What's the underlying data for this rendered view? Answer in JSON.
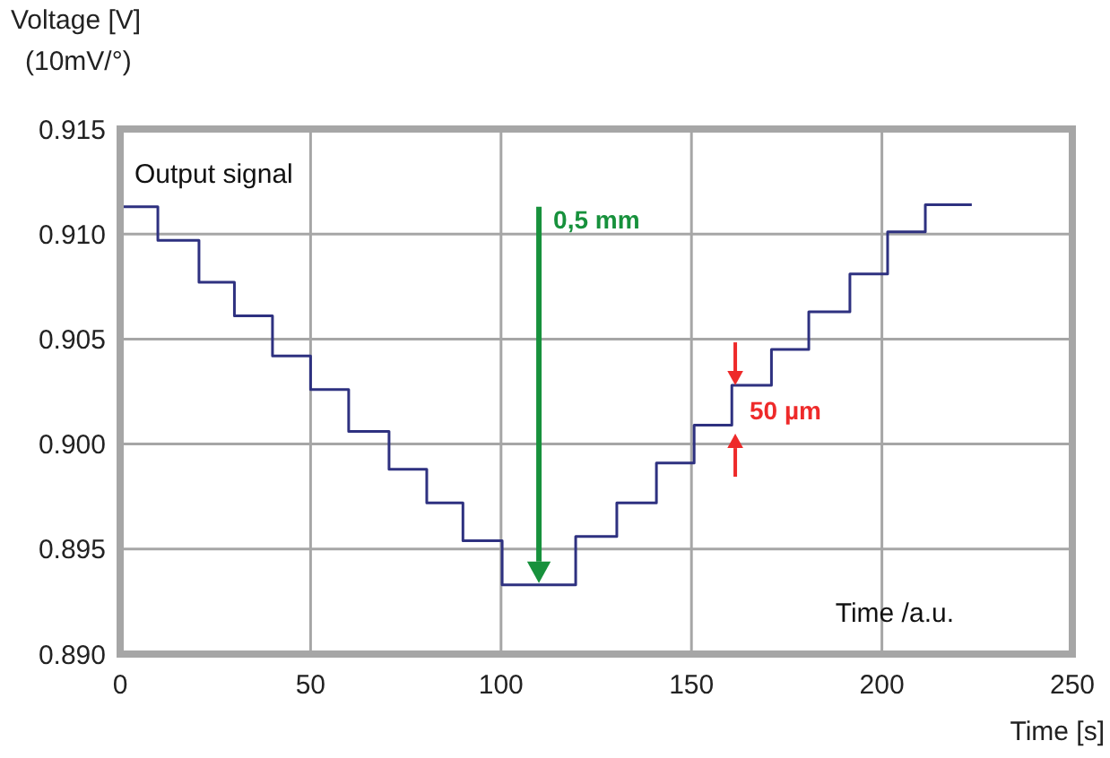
{
  "chart_data": {
    "type": "step",
    "ylabel": "Voltage [V]\n(10mV/°)",
    "xlabel": "Time [s]",
    "x": [
      0,
      9.9,
      20.7,
      30,
      40,
      50,
      60,
      70.6,
      80.5,
      90,
      100.3,
      119.6,
      130.4,
      140.8,
      150.7,
      160.6,
      171,
      180.8,
      191.6,
      201.5,
      211.4,
      223.6
    ],
    "series": [
      {
        "color": "#2e3180",
        "values": [
          0.9113,
          0.9097,
          0.9077,
          0.9061,
          0.9042,
          0.9026,
          0.9006,
          0.8988,
          0.8972,
          0.8954,
          0.8933,
          0.8956,
          0.8972,
          0.8991,
          0.9009,
          0.9028,
          0.9045,
          0.9063,
          0.9081,
          0.9101,
          0.9114,
          0.9114
        ]
      }
    ],
    "xlim": [
      0,
      250
    ],
    "xticks": [
      0,
      50,
      100,
      150,
      200,
      250
    ],
    "ylim": [
      0.89,
      0.915
    ],
    "yticks": [
      {
        "value": 0.89,
        "label": "0.890"
      },
      {
        "value": 0.895,
        "label": "0.895"
      },
      {
        "value": 0.9,
        "label": "0.900"
      },
      {
        "value": 0.905,
        "label": "0.905"
      },
      {
        "value": 0.91,
        "label": "0.910"
      },
      {
        "value": 0.915,
        "label": "0.915"
      }
    ],
    "grid": true,
    "annotations": [
      "Output signal",
      "Time /a.u.",
      "0,5 mm",
      {
        "text": "50 µm",
        "x": 161.5,
        "y": 0.9016
      }
    ]
  }
}
